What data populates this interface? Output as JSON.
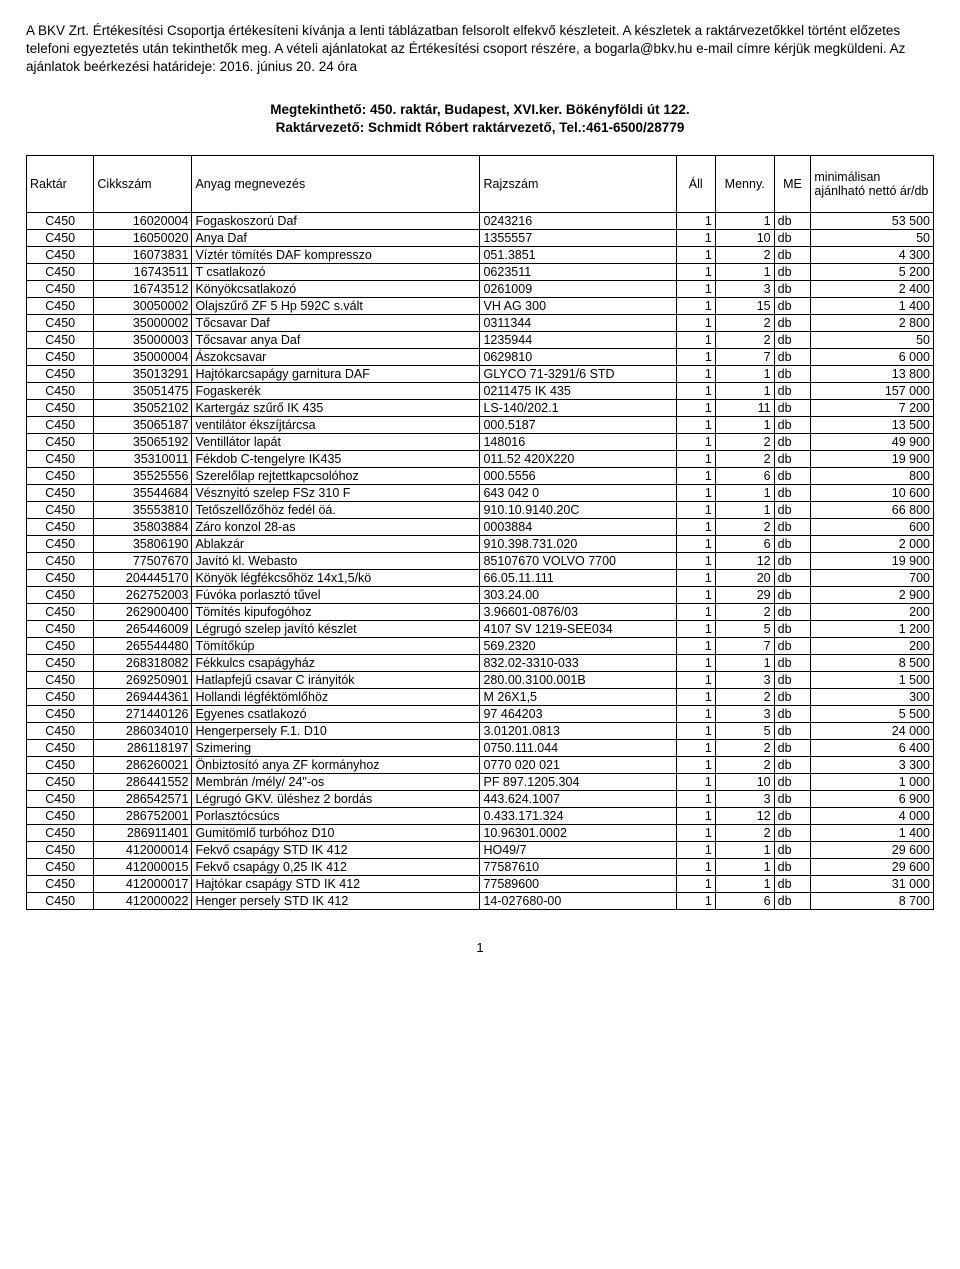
{
  "intro": "A BKV Zrt. Értékesítési Csoportja értékesíteni kívánja a lenti táblázatban felsorolt elfekvő készleteit. A készletek a raktárvezetőkkel történt előzetes telefoni egyeztetés után tekinthetők meg. A vételi ajánlatokat az Értékesítési csoport részére, a bogarla@bkv.hu e-mail címre kérjük megküldeni. Az ajánlatok beérkezési határideje: 2016. június 20. 24 óra",
  "heading_line1": "Megtekinthető: 450. raktár, Budapest, XVI.ker. Bökényföldi út 122.",
  "heading_line2": "Raktárvezető: Schmidt Róbert raktárvezető, Tel.:461-6500/28779",
  "columns": {
    "raktar": "Raktár",
    "cikkszam": "Cikkszám",
    "anyag": "Anyag megnevezés",
    "rajzszam": "Rajzszám",
    "all": "Áll",
    "menny": "Menny.",
    "me": "ME",
    "ar": "minimálisan ajánlható nettó ár/db"
  },
  "rows": [
    [
      "C450",
      "16020004",
      "Fogaskoszorú Daf",
      "0243216",
      "1",
      "1",
      "db",
      "53 500"
    ],
    [
      "C450",
      "16050020",
      "Anya Daf",
      "1355557",
      "1",
      "10",
      "db",
      "50"
    ],
    [
      "C450",
      "16073831",
      "Víztér tömítés DAF kompresszo",
      "051.3851",
      "1",
      "2",
      "db",
      "4 300"
    ],
    [
      "C450",
      "16743511",
      "T csatlakozó",
      "0623511",
      "1",
      "1",
      "db",
      "5 200"
    ],
    [
      "C450",
      "16743512",
      "Könyökcsatlakozó",
      "0261009",
      "1",
      "3",
      "db",
      "2 400"
    ],
    [
      "C450",
      "30050002",
      "Olajszűrő ZF 5 Hp 592C s.vált",
      "VH AG 300",
      "1",
      "15",
      "db",
      "1 400"
    ],
    [
      "C450",
      "35000002",
      "Tőcsavar Daf",
      "0311344",
      "1",
      "2",
      "db",
      "2 800"
    ],
    [
      "C450",
      "35000003",
      "Tőcsavar anya Daf",
      "1235944",
      "1",
      "2",
      "db",
      "50"
    ],
    [
      "C450",
      "35000004",
      "Ászokcsavar",
      "0629810",
      "1",
      "7",
      "db",
      "6 000"
    ],
    [
      "C450",
      "35013291",
      "Hajtókarcsapágy garnitura DAF",
      "GLYCO 71-3291/6 STD",
      "1",
      "1",
      "db",
      "13 800"
    ],
    [
      "C450",
      "35051475",
      "Fogaskerék",
      "0211475 IK 435",
      "1",
      "1",
      "db",
      "157 000"
    ],
    [
      "C450",
      "35052102",
      "Kartergáz szűrő IK 435",
      "LS-140/202.1",
      "1",
      "11",
      "db",
      "7 200"
    ],
    [
      "C450",
      "35065187",
      "ventilátor ékszíjtárcsa",
      "000.5187",
      "1",
      "1",
      "db",
      "13 500"
    ],
    [
      "C450",
      "35065192",
      "Ventillátor lapát",
      "148016",
      "1",
      "2",
      "db",
      "49 900"
    ],
    [
      "C450",
      "35310011",
      "Fékdob C-tengelyre IK435",
      "011.52 420X220",
      "1",
      "2",
      "db",
      "19 900"
    ],
    [
      "C450",
      "35525556",
      "Szerelőlap rejtettkapcsolóhoz",
      "000.5556",
      "1",
      "6",
      "db",
      "800"
    ],
    [
      "C450",
      "35544684",
      "Vésznyitó szelep FSz 310 F",
      "643 042 0",
      "1",
      "1",
      "db",
      "10 600"
    ],
    [
      "C450",
      "35553810",
      "Tetőszellőzőhöz fedél öá.",
      "910.10.9140.20C",
      "1",
      "1",
      "db",
      "66 800"
    ],
    [
      "C450",
      "35803884",
      "Záro konzol 28-as",
      "0003884",
      "1",
      "2",
      "db",
      "600"
    ],
    [
      "C450",
      "35806190",
      "Ablakzár",
      "910.398.731.020",
      "1",
      "6",
      "db",
      "2 000"
    ],
    [
      "C450",
      "77507670",
      "Javító kl. Webasto",
      "85107670 VOLVO 7700",
      "1",
      "12",
      "db",
      "19 900"
    ],
    [
      "C450",
      "204445170",
      "Könyök légfékcsőhöz 14x1,5/kö",
      "66.05.11.111",
      "1",
      "20",
      "db",
      "700"
    ],
    [
      "C450",
      "262752003",
      "Fúvóka porlasztó tűvel",
      "303.24.00",
      "1",
      "29",
      "db",
      "2 900"
    ],
    [
      "C450",
      "262900400",
      "Tömítés kipufogóhoz",
      "3.96601-0876/03",
      "1",
      "2",
      "db",
      "200"
    ],
    [
      "C450",
      "265446009",
      "Légrugó szelep javító készlet",
      "4107 SV 1219-SEE034",
      "1",
      "5",
      "db",
      "1 200"
    ],
    [
      "C450",
      "265544480",
      "Tömítőkúp",
      "569.2320",
      "1",
      "7",
      "db",
      "200"
    ],
    [
      "C450",
      "268318082",
      "Fékkulcs csapágyház",
      "832.02-3310-033",
      "1",
      "1",
      "db",
      "8 500"
    ],
    [
      "C450",
      "269250901",
      "Hatlapfejű csavar C irányitók",
      "280.00.3100.001B",
      "1",
      "3",
      "db",
      "1 500"
    ],
    [
      "C450",
      "269444361",
      "Hollandi légféktömlőhöz",
      "M 26X1,5",
      "1",
      "2",
      "db",
      "300"
    ],
    [
      "C450",
      "271440126",
      "Egyenes csatlakozó",
      "97 464203",
      "1",
      "3",
      "db",
      "5 500"
    ],
    [
      "C450",
      "286034010",
      "Hengerpersely F.1. D10",
      "3.01201.0813",
      "1",
      "5",
      "db",
      "24 000"
    ],
    [
      "C450",
      "286118197",
      "Szimering",
      "0750.111.044",
      "1",
      "2",
      "db",
      "6 400"
    ],
    [
      "C450",
      "286260021",
      "Önbiztosító anya ZF kormányhoz",
      "0770 020 021",
      "1",
      "2",
      "db",
      "3 300"
    ],
    [
      "C450",
      "286441552",
      "Membrán /mély/ 24\"-os",
      "PF 897.1205.304",
      "1",
      "10",
      "db",
      "1 000"
    ],
    [
      "C450",
      "286542571",
      "Légrugó GKV. üléshez 2 bordás",
      "443.624.1007",
      "1",
      "3",
      "db",
      "6 900"
    ],
    [
      "C450",
      "286752001",
      "Porlasztócsúcs",
      "0.433.171.324",
      "1",
      "12",
      "db",
      "4 000"
    ],
    [
      "C450",
      "286911401",
      "Gumitömlő turbóhoz D10",
      "10.96301.0002",
      "1",
      "2",
      "db",
      "1 400"
    ],
    [
      "C450",
      "412000014",
      "Fekvő csapágy STD IK 412",
      "HO49/7",
      "1",
      "1",
      "db",
      "29 600"
    ],
    [
      "C450",
      "412000015",
      "Fekvő csapágy 0,25 IK 412",
      "77587610",
      "1",
      "1",
      "db",
      "29 600"
    ],
    [
      "C450",
      "412000017",
      "Hajtókar csapágy STD IK 412",
      "77589600",
      "1",
      "1",
      "db",
      "31 000"
    ],
    [
      "C450",
      "412000022",
      "Henger persely STD IK 412",
      "14-027680-00",
      "1",
      "6",
      "db",
      "8 700"
    ]
  ],
  "page_number": "1"
}
